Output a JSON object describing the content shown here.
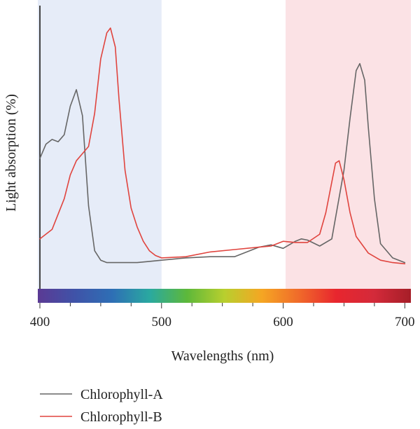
{
  "chart_data": {
    "type": "line",
    "title": "",
    "xlabel": "Wavelengths (nm)",
    "ylabel": "Light absorption (%)",
    "xlim": [
      400,
      705
    ],
    "ylim": [
      0,
      100
    ],
    "x_ticks": [
      400,
      500,
      600,
      700
    ],
    "x_tick_labels": [
      "400",
      "500",
      "600",
      "700"
    ],
    "grid": false,
    "legend_position": "bottom-left",
    "shaded_regions": [
      {
        "x0": 400,
        "x1": 500,
        "color": "#e6ecf8"
      },
      {
        "x0": 602,
        "x1": 705,
        "color": "#fbe2e5"
      }
    ],
    "spectrum_bar_colors": [
      "#5b3a94",
      "#3f53a8",
      "#2e6fb5",
      "#2aa9a0",
      "#5db83a",
      "#b8cf2e",
      "#f5a623",
      "#f06a2a",
      "#e8262e",
      "#d42a3a",
      "#a61e28"
    ],
    "series": [
      {
        "name": "Chlorophyll-A",
        "color": "#666666",
        "x": [
          400,
          405,
          410,
          415,
          420,
          425,
          430,
          435,
          440,
          445,
          450,
          455,
          460,
          470,
          480,
          490,
          500,
          520,
          540,
          560,
          580,
          590,
          600,
          610,
          615,
          620,
          630,
          640,
          650,
          655,
          660,
          663,
          667,
          670,
          675,
          680,
          690,
          700
        ],
        "y": [
          45,
          51,
          53,
          52,
          55,
          67,
          74,
          63,
          25,
          6,
          2,
          1,
          1,
          1,
          1,
          1.5,
          2,
          3,
          3.5,
          3.5,
          7.5,
          8.5,
          7,
          10,
          11,
          10.5,
          8,
          11,
          40,
          62,
          82,
          85,
          78,
          58,
          28,
          9,
          3,
          1
        ]
      },
      {
        "name": "Chlorophyll-B",
        "color": "#e0443e",
        "x": [
          400,
          410,
          420,
          425,
          430,
          435,
          440,
          445,
          450,
          455,
          458,
          462,
          465,
          470,
          475,
          480,
          485,
          490,
          495,
          500,
          520,
          540,
          560,
          580,
          590,
          600,
          610,
          620,
          630,
          635,
          640,
          643,
          646,
          650,
          655,
          660,
          670,
          680,
          690,
          700
        ],
        "y": [
          11,
          15,
          28,
          38,
          44,
          47,
          50,
          64,
          87,
          98,
          100,
          92,
          70,
          40,
          24,
          16,
          10,
          6,
          4,
          3,
          3.5,
          5.5,
          6.5,
          7.5,
          8,
          10,
          9.5,
          9.5,
          13,
          22,
          35,
          43,
          44,
          36,
          22,
          12,
          5,
          2,
          1,
          0.5
        ]
      }
    ]
  }
}
